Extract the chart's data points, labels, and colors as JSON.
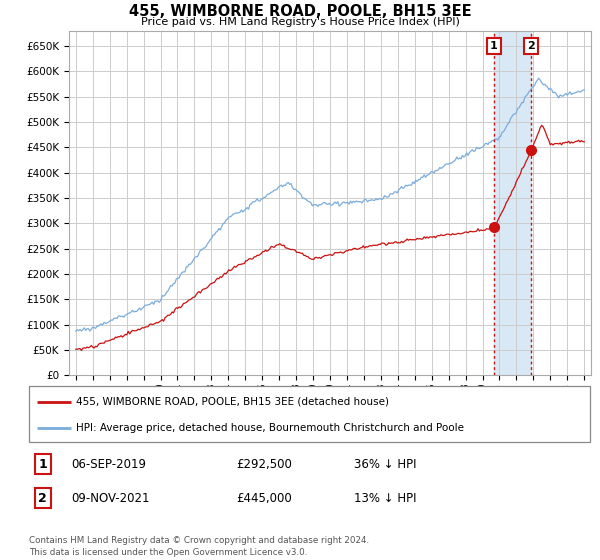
{
  "title": "455, WIMBORNE ROAD, POOLE, BH15 3EE",
  "subtitle": "Price paid vs. HM Land Registry's House Price Index (HPI)",
  "ylabel_ticks": [
    "£0",
    "£50K",
    "£100K",
    "£150K",
    "£200K",
    "£250K",
    "£300K",
    "£350K",
    "£400K",
    "£450K",
    "£500K",
    "£550K",
    "£600K",
    "£650K"
  ],
  "ytick_values": [
    0,
    50000,
    100000,
    150000,
    200000,
    250000,
    300000,
    350000,
    400000,
    450000,
    500000,
    550000,
    600000,
    650000
  ],
  "ylim": [
    0,
    680000
  ],
  "xlim_start": 1994.6,
  "xlim_end": 2025.4,
  "xtick_start": 1995,
  "xtick_end": 2025,
  "legend_line1": "455, WIMBORNE ROAD, POOLE, BH15 3EE (detached house)",
  "legend_line2": "HPI: Average price, detached house, Bournemouth Christchurch and Poole",
  "sale1_date": "06-SEP-2019",
  "sale1_price": "£292,500",
  "sale1_hpi": "36% ↓ HPI",
  "sale1_year": 2019.68,
  "sale1_value": 292500,
  "sale2_date": "09-NOV-2021",
  "sale2_price": "£445,000",
  "sale2_hpi": "13% ↓ HPI",
  "sale2_year": 2021.86,
  "sale2_value": 445000,
  "footer": "Contains HM Land Registry data © Crown copyright and database right 2024.\nThis data is licensed under the Open Government Licence v3.0.",
  "hpi_color": "#7aaddc",
  "sale_color": "#cc1111",
  "grid_color": "#cccccc",
  "shade_color": "#d8e8f5",
  "background_color": "#ffffff"
}
